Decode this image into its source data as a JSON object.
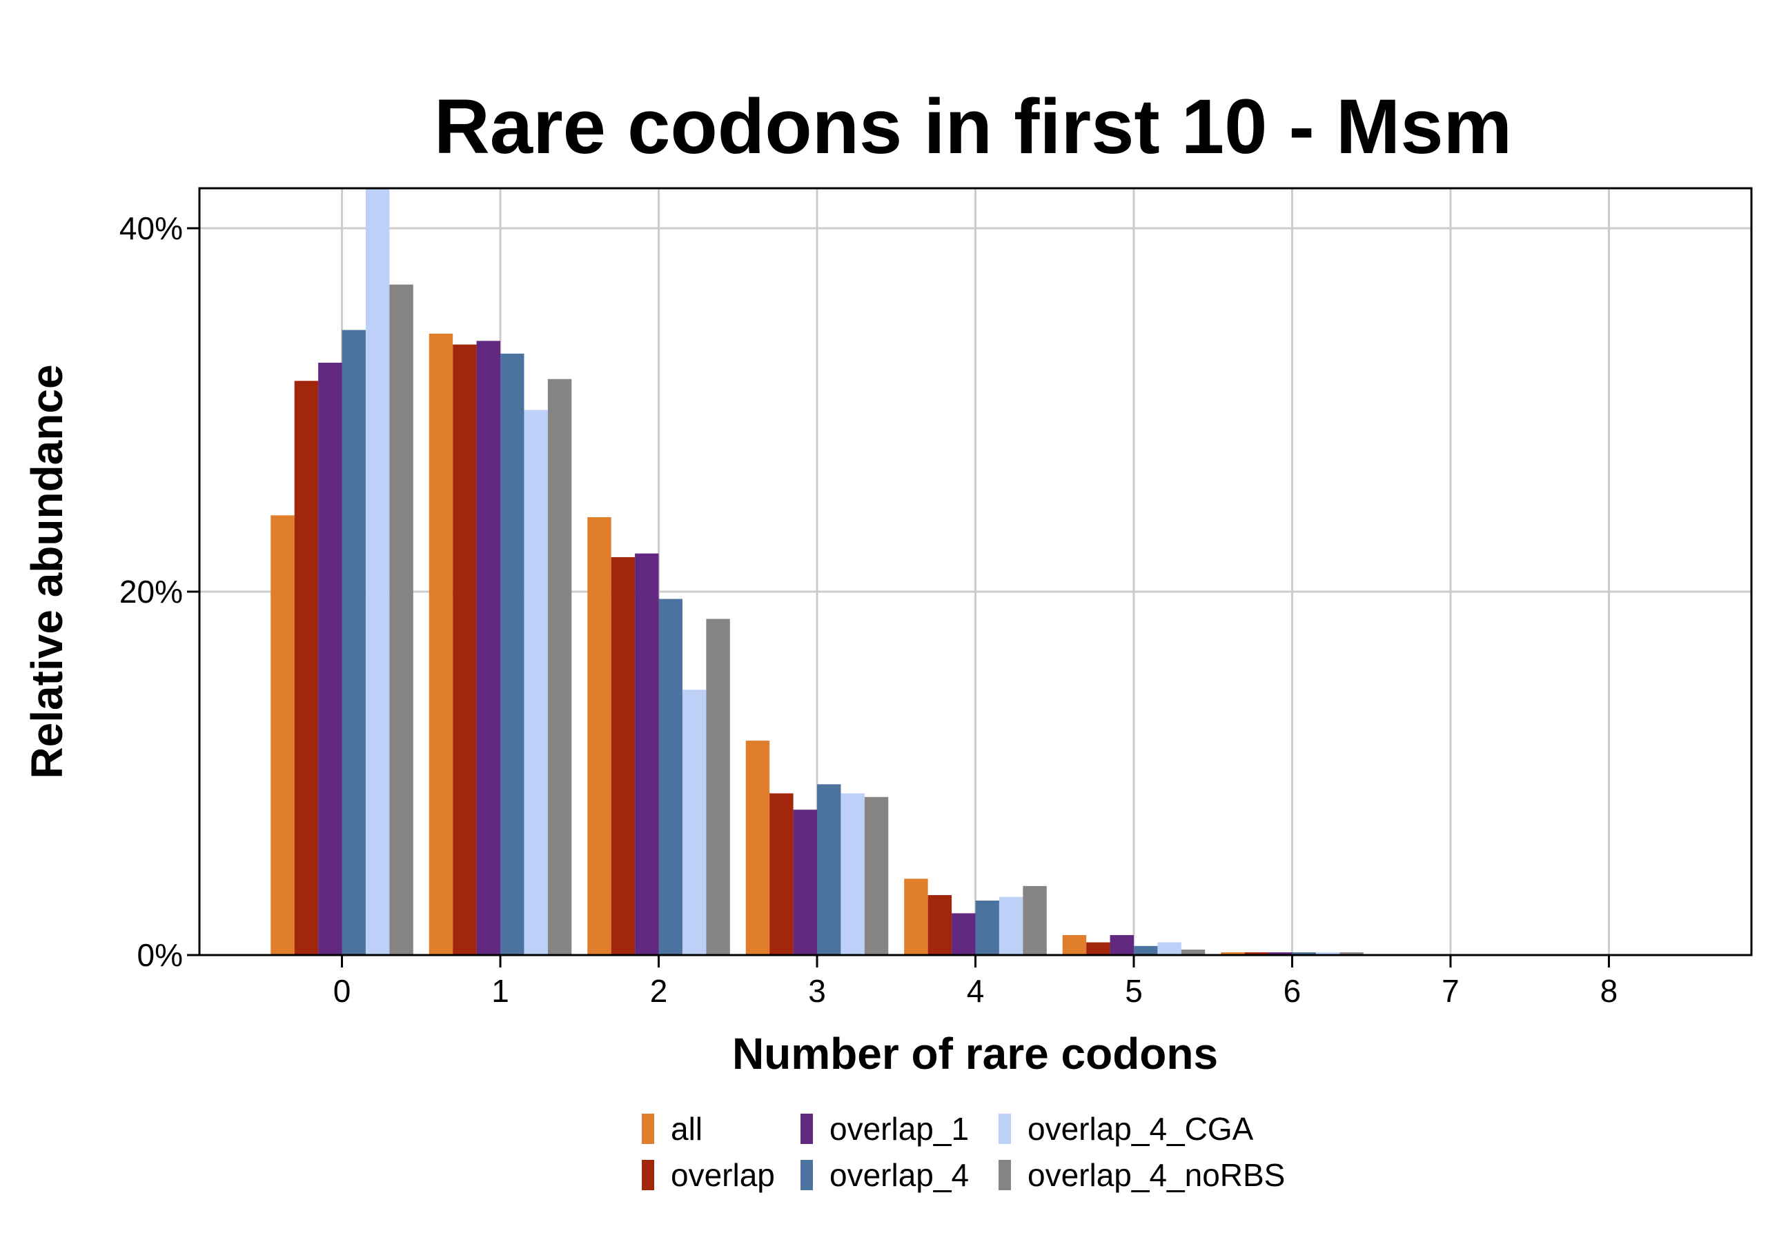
{
  "chart_data": {
    "type": "bar",
    "title": "Rare codons in first 10 - Msm",
    "xlabel": "Number of rare codons",
    "ylabel": "Relative abundance",
    "categories": [
      0,
      1,
      2,
      3,
      4,
      5,
      6,
      7,
      8
    ],
    "x_tick_labels": [
      "0",
      "1",
      "2",
      "3",
      "4",
      "5",
      "6",
      "7",
      "8"
    ],
    "y_ticks": [
      0,
      20,
      40
    ],
    "y_tick_labels": [
      "0%",
      "20%",
      "40%"
    ],
    "ylim": [
      0,
      42.2
    ],
    "xlim": [
      -0.9,
      8.9
    ],
    "grid": true,
    "legend_position": "bottom",
    "series": [
      {
        "name": "all",
        "color": "#E07E2B",
        "values": [
          24.2,
          34.2,
          24.1,
          11.8,
          4.2,
          1.1,
          0.15,
          0,
          0
        ]
      },
      {
        "name": "overlap",
        "color": "#A2260C",
        "values": [
          31.6,
          33.6,
          21.9,
          8.9,
          3.3,
          0.7,
          0.15,
          0,
          0
        ]
      },
      {
        "name": "overlap_1",
        "color": "#62277E",
        "values": [
          32.6,
          33.8,
          22.1,
          8.0,
          2.3,
          1.1,
          0.15,
          0,
          0
        ]
      },
      {
        "name": "overlap_4",
        "color": "#4C72A0",
        "values": [
          34.4,
          33.1,
          19.6,
          9.4,
          3.0,
          0.5,
          0.15,
          0,
          0
        ]
      },
      {
        "name": "overlap_4_CGA",
        "color": "#BDD0F7",
        "values": [
          42.2,
          30.0,
          14.6,
          8.9,
          3.2,
          0.7,
          0.15,
          0,
          0
        ]
      },
      {
        "name": "overlap_4_noRBS",
        "color": "#878584",
        "values": [
          36.9,
          31.7,
          18.5,
          8.7,
          3.8,
          0.3,
          0.15,
          0,
          0
        ]
      }
    ]
  }
}
